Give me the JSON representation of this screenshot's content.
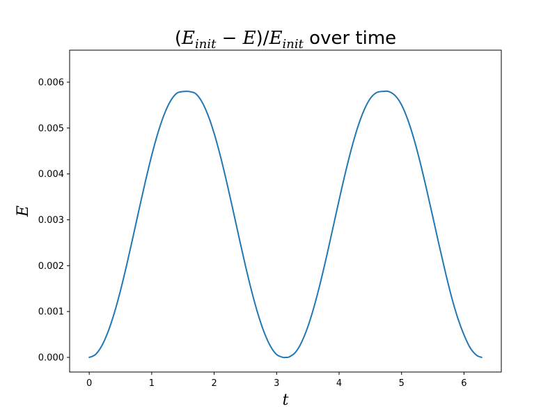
{
  "chart_data": {
    "type": "line",
    "title": {
      "open_paren": "(",
      "e1": "E",
      "sub1": "init",
      "minus": " − ",
      "e2": "E",
      "close_slash": ")/",
      "e3": "E",
      "sub2": "init",
      "suffix": " over time"
    },
    "xlabel": "t",
    "ylabel": "E",
    "xlim": [
      -0.314,
      6.597
    ],
    "ylim": [
      -0.000319,
      0.006698
    ],
    "xticks": [
      0,
      1,
      2,
      3,
      4,
      5,
      6
    ],
    "xtick_labels": [
      "0",
      "1",
      "2",
      "3",
      "4",
      "5",
      "6"
    ],
    "yticks": [
      0,
      0.001,
      0.002,
      0.003,
      0.004,
      0.005,
      0.006
    ],
    "ytick_labels": [
      "0.000",
      "0.001",
      "0.002",
      "0.003",
      "0.004",
      "0.005",
      "0.006"
    ],
    "grid": false,
    "series": [
      {
        "color": "#1f77b4",
        "x": [
          0,
          0.1,
          0.2,
          0.3,
          0.4,
          0.5,
          0.6,
          0.7,
          0.8,
          0.9,
          1.0,
          1.1,
          1.2,
          1.3,
          1.4,
          1.5,
          1.571,
          1.6,
          1.7,
          1.8,
          1.9,
          2.0,
          2.1,
          2.2,
          2.3,
          2.4,
          2.5,
          2.6,
          2.7,
          2.8,
          2.9,
          3.0,
          3.1,
          3.142,
          3.2,
          3.3,
          3.4,
          3.5,
          3.6,
          3.7,
          3.8,
          3.9,
          4.0,
          4.1,
          4.2,
          4.3,
          4.4,
          4.5,
          4.6,
          4.712,
          4.8,
          4.9,
          5.0,
          5.1,
          5.2,
          5.3,
          5.4,
          5.5,
          5.6,
          5.7,
          5.8,
          5.9,
          6.0,
          6.1,
          6.2,
          6.283
        ],
        "y": [
          0.0,
          6.3e-05,
          0.00025,
          0.000554,
          0.000962,
          0.001457,
          0.002019,
          0.002622,
          0.003239,
          0.003842,
          0.004403,
          0.004895,
          0.005296,
          0.005588,
          0.005757,
          0.005796,
          0.0058,
          0.005795,
          0.005753,
          0.005581,
          0.005285,
          0.004882,
          0.004388,
          0.003826,
          0.003222,
          0.002605,
          0.002003,
          0.001444,
          0.000952,
          0.000548,
          0.000247,
          6.2e-05,
          1e-06,
          0.0,
          1e-05,
          0.000108,
          0.000332,
          0.000669,
          0.001109,
          0.001626,
          0.002203,
          0.002815,
          0.003429,
          0.004021,
          0.004561,
          0.005025,
          0.005391,
          0.005645,
          0.005774,
          0.0058,
          0.005794,
          0.005704,
          0.005506,
          0.005181,
          0.004755,
          0.004241,
          0.003668,
          0.003066,
          0.002456,
          0.001867,
          0.001322,
          0.000858,
          0.00049,
          0.000206,
          4.7e-05,
          0.0
        ]
      }
    ]
  }
}
